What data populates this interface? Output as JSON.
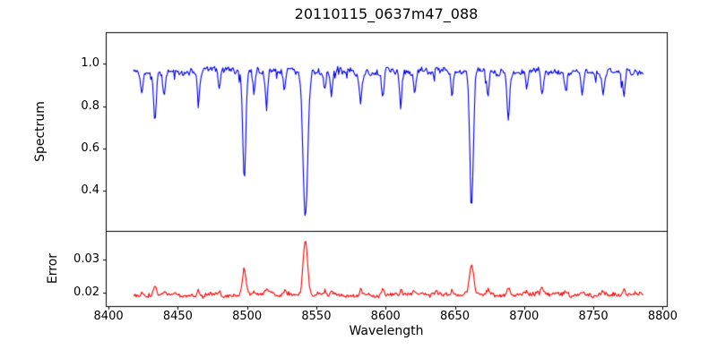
{
  "figure": {
    "background": "#ffffff",
    "axes_color": "#000000"
  },
  "chart_data": {
    "type": "line",
    "title": "20110115_0637m47_088",
    "xlabel": "Wavelength",
    "xlim": [
      8398,
      8803
    ],
    "x_range": [
      8418,
      8786
    ],
    "n_points": 560,
    "seed": 88,
    "grid": false,
    "legend": "none",
    "xticks": [
      8400,
      8450,
      8500,
      8550,
      8600,
      8650,
      8700,
      8750,
      8800
    ],
    "xtick_labels": [
      "8400",
      "8450",
      "8500",
      "8550",
      "8600",
      "8650",
      "8700",
      "8750",
      "8800"
    ],
    "panels": [
      {
        "name": "spectrum",
        "ylabel": "Spectrum",
        "color": "#0000ee",
        "ylim": [
          0.21,
          1.15
        ],
        "yticks": [
          0.4,
          0.6,
          0.8,
          1.0
        ],
        "ytick_labels": [
          "0.4",
          "0.6",
          "0.8",
          "1.0"
        ],
        "continuum": 0.965,
        "noise_amplitude": 0.014,
        "spike_probability": 0.05,
        "spike_depth": 0.06,
        "major_lines": [
          {
            "center": 8498.0,
            "depth": 0.5,
            "width": 1.1
          },
          {
            "center": 8542.1,
            "depth": 0.69,
            "width": 1.7
          },
          {
            "center": 8662.1,
            "depth": 0.63,
            "width": 1.3
          }
        ],
        "minor_lines": [
          {
            "center": 8424.0,
            "depth": 0.1,
            "width": 0.9
          },
          {
            "center": 8433.5,
            "depth": 0.22,
            "width": 1.0
          },
          {
            "center": 8440.0,
            "depth": 0.1,
            "width": 0.8
          },
          {
            "center": 8465.0,
            "depth": 0.14,
            "width": 0.9
          },
          {
            "center": 8480.0,
            "depth": 0.08,
            "width": 0.8
          },
          {
            "center": 8505.0,
            "depth": 0.1,
            "width": 0.8
          },
          {
            "center": 8514.0,
            "depth": 0.15,
            "width": 1.0
          },
          {
            "center": 8527.0,
            "depth": 0.1,
            "width": 0.8
          },
          {
            "center": 8556.0,
            "depth": 0.1,
            "width": 0.8
          },
          {
            "center": 8560.8,
            "depth": 0.11,
            "width": 0.8
          },
          {
            "center": 8582.0,
            "depth": 0.13,
            "width": 0.9
          },
          {
            "center": 8598.0,
            "depth": 0.13,
            "width": 0.9
          },
          {
            "center": 8611.0,
            "depth": 0.14,
            "width": 0.9
          },
          {
            "center": 8621.0,
            "depth": 0.1,
            "width": 0.8
          },
          {
            "center": 8648.0,
            "depth": 0.11,
            "width": 0.8
          },
          {
            "center": 8674.0,
            "depth": 0.13,
            "width": 0.9
          },
          {
            "center": 8688.6,
            "depth": 0.22,
            "width": 1.0
          },
          {
            "center": 8702.0,
            "depth": 0.09,
            "width": 0.8
          },
          {
            "center": 8713.0,
            "depth": 0.12,
            "width": 0.9
          },
          {
            "center": 8730.0,
            "depth": 0.1,
            "width": 0.8
          },
          {
            "center": 8742.0,
            "depth": 0.12,
            "width": 0.9
          },
          {
            "center": 8757.0,
            "depth": 0.11,
            "width": 0.8
          },
          {
            "center": 8772.0,
            "depth": 0.11,
            "width": 0.8
          }
        ]
      },
      {
        "name": "error",
        "ylabel": "Error",
        "color": "#ff0000",
        "ylim": [
          0.016,
          0.0385
        ],
        "yticks": [
          0.02,
          0.03
        ],
        "ytick_labels": [
          "0.02",
          "0.03"
        ],
        "baseline": 0.0195,
        "noise_amplitude": 0.0006,
        "minor_bump_scale": 0.012,
        "peaks": [
          {
            "center": 8498.0,
            "height": 0.0075,
            "width": 1.3
          },
          {
            "center": 8542.1,
            "height": 0.0165,
            "width": 1.6
          },
          {
            "center": 8662.1,
            "height": 0.0095,
            "width": 1.4
          }
        ]
      }
    ]
  }
}
